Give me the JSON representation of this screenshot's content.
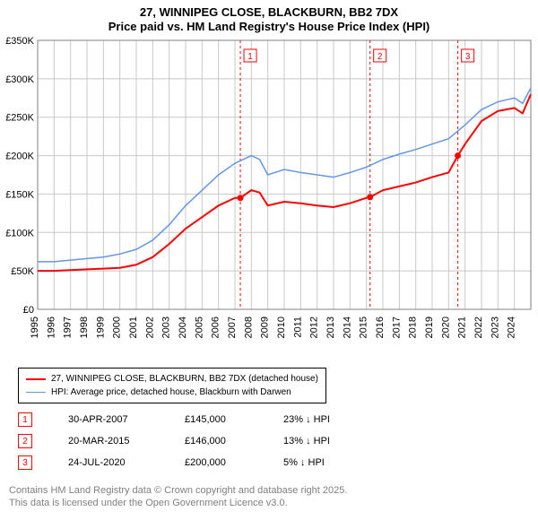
{
  "title": {
    "line1": "27, WINNIPEG CLOSE, BLACKBURN, BB2 7DX",
    "line2": "Price paid vs. HM Land Registry's House Price Index (HPI)"
  },
  "chart": {
    "type": "line",
    "background_color": "#ffffff",
    "grid_color": "#c8c8c8",
    "plot_border_color": "#808080",
    "x": {
      "min": 1995,
      "max": 2025,
      "ticks": [
        1995,
        1996,
        1997,
        1998,
        1999,
        2000,
        2001,
        2002,
        2003,
        2004,
        2005,
        2006,
        2007,
        2008,
        2009,
        2010,
        2011,
        2012,
        2013,
        2014,
        2015,
        2016,
        2017,
        2018,
        2019,
        2020,
        2021,
        2022,
        2023,
        2024
      ],
      "label_fontsize": 11,
      "rotate": -90
    },
    "y": {
      "min": 0,
      "max": 350000,
      "ticks": [
        0,
        50000,
        100000,
        150000,
        200000,
        250000,
        300000,
        350000
      ],
      "tick_labels": [
        "£0",
        "£50K",
        "£100K",
        "£150K",
        "£200K",
        "£250K",
        "£300K",
        "£350K"
      ],
      "label_fontsize": 11
    },
    "series": [
      {
        "name": "price_paid",
        "label": "27, WINNIPEG CLOSE, BLACKBURN, BB2 7DX (detached house)",
        "color": "#ff0000",
        "line_width": 2,
        "points": [
          [
            1995.0,
            50000
          ],
          [
            1996.0,
            50000
          ],
          [
            1997.0,
            51000
          ],
          [
            1998.0,
            52000
          ],
          [
            1999.0,
            53000
          ],
          [
            2000.0,
            54000
          ],
          [
            2001.0,
            58000
          ],
          [
            2002.0,
            68000
          ],
          [
            2003.0,
            85000
          ],
          [
            2004.0,
            105000
          ],
          [
            2005.0,
            120000
          ],
          [
            2006.0,
            135000
          ],
          [
            2007.0,
            145000
          ],
          [
            2007.33,
            145000
          ],
          [
            2008.0,
            155000
          ],
          [
            2008.5,
            152000
          ],
          [
            2009.0,
            135000
          ],
          [
            2010.0,
            140000
          ],
          [
            2011.0,
            138000
          ],
          [
            2012.0,
            135000
          ],
          [
            2013.0,
            133000
          ],
          [
            2014.0,
            138000
          ],
          [
            2015.0,
            145000
          ],
          [
            2015.22,
            146000
          ],
          [
            2016.0,
            155000
          ],
          [
            2017.0,
            160000
          ],
          [
            2018.0,
            165000
          ],
          [
            2019.0,
            172000
          ],
          [
            2020.0,
            178000
          ],
          [
            2020.56,
            200000
          ],
          [
            2021.0,
            215000
          ],
          [
            2022.0,
            245000
          ],
          [
            2023.0,
            258000
          ],
          [
            2024.0,
            262000
          ],
          [
            2024.5,
            255000
          ],
          [
            2025.0,
            280000
          ]
        ]
      },
      {
        "name": "hpi",
        "label": "HPI: Average price, detached house, Blackburn with Darwen",
        "color": "#6495ed",
        "line_width": 1.5,
        "points": [
          [
            1995.0,
            62000
          ],
          [
            1996.0,
            62000
          ],
          [
            1997.0,
            64000
          ],
          [
            1998.0,
            66000
          ],
          [
            1999.0,
            68000
          ],
          [
            2000.0,
            72000
          ],
          [
            2001.0,
            78000
          ],
          [
            2002.0,
            90000
          ],
          [
            2003.0,
            110000
          ],
          [
            2004.0,
            135000
          ],
          [
            2005.0,
            155000
          ],
          [
            2006.0,
            175000
          ],
          [
            2007.0,
            190000
          ],
          [
            2008.0,
            200000
          ],
          [
            2008.5,
            195000
          ],
          [
            2009.0,
            175000
          ],
          [
            2010.0,
            182000
          ],
          [
            2011.0,
            178000
          ],
          [
            2012.0,
            175000
          ],
          [
            2013.0,
            172000
          ],
          [
            2014.0,
            178000
          ],
          [
            2015.0,
            185000
          ],
          [
            2016.0,
            195000
          ],
          [
            2017.0,
            202000
          ],
          [
            2018.0,
            208000
          ],
          [
            2019.0,
            215000
          ],
          [
            2020.0,
            222000
          ],
          [
            2021.0,
            240000
          ],
          [
            2022.0,
            260000
          ],
          [
            2023.0,
            270000
          ],
          [
            2024.0,
            275000
          ],
          [
            2024.5,
            268000
          ],
          [
            2025.0,
            288000
          ]
        ]
      }
    ],
    "markers": [
      {
        "n": "1",
        "x": 2007.33,
        "y": 145000,
        "date": "30-APR-2007",
        "price": "£145,000",
        "diff": "23% ↓ HPI"
      },
      {
        "n": "2",
        "x": 2015.22,
        "y": 146000,
        "date": "20-MAR-2015",
        "price": "£146,000",
        "diff": "13% ↓ HPI"
      },
      {
        "n": "3",
        "x": 2020.56,
        "y": 200000,
        "date": "24-JUL-2020",
        "price": "£200,000",
        "diff": "5% ↓ HPI"
      }
    ],
    "marker_box_color": "#ff0000",
    "marker_line_dash": "3,3"
  },
  "legend": {
    "border_color": "#000000",
    "fontsize": 10
  },
  "footer": {
    "line1": "Contains HM Land Registry data © Crown copyright and database right 2025.",
    "line2": "This data is licensed under the Open Government Licence v3.0.",
    "color": "#808080"
  }
}
